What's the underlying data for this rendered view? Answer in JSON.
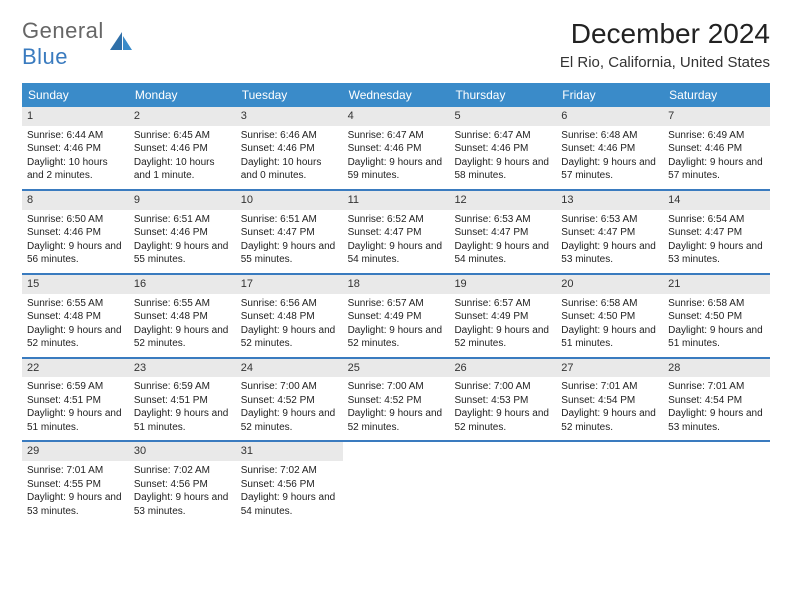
{
  "logo": {
    "part1": "General",
    "part2": "Blue"
  },
  "title": "December 2024",
  "location": "El Rio, California, United States",
  "colors": {
    "header_bg": "#3a8bc9",
    "header_text": "#ffffff",
    "daynum_bg": "#e9e9e9",
    "week_border": "#3a7bbf",
    "logo_blue": "#3a7bbf",
    "text": "#222222",
    "background": "#ffffff"
  },
  "fonts": {
    "title_size_pt": 28,
    "location_size_pt": 15,
    "header_size_pt": 12,
    "body_size_pt": 10,
    "family": "Arial"
  },
  "day_names": [
    "Sunday",
    "Monday",
    "Tuesday",
    "Wednesday",
    "Thursday",
    "Friday",
    "Saturday"
  ],
  "weeks": [
    [
      {
        "n": "1",
        "sr": "Sunrise: 6:44 AM",
        "ss": "Sunset: 4:46 PM",
        "dl": "Daylight: 10 hours and 2 minutes."
      },
      {
        "n": "2",
        "sr": "Sunrise: 6:45 AM",
        "ss": "Sunset: 4:46 PM",
        "dl": "Daylight: 10 hours and 1 minute."
      },
      {
        "n": "3",
        "sr": "Sunrise: 6:46 AM",
        "ss": "Sunset: 4:46 PM",
        "dl": "Daylight: 10 hours and 0 minutes."
      },
      {
        "n": "4",
        "sr": "Sunrise: 6:47 AM",
        "ss": "Sunset: 4:46 PM",
        "dl": "Daylight: 9 hours and 59 minutes."
      },
      {
        "n": "5",
        "sr": "Sunrise: 6:47 AM",
        "ss": "Sunset: 4:46 PM",
        "dl": "Daylight: 9 hours and 58 minutes."
      },
      {
        "n": "6",
        "sr": "Sunrise: 6:48 AM",
        "ss": "Sunset: 4:46 PM",
        "dl": "Daylight: 9 hours and 57 minutes."
      },
      {
        "n": "7",
        "sr": "Sunrise: 6:49 AM",
        "ss": "Sunset: 4:46 PM",
        "dl": "Daylight: 9 hours and 57 minutes."
      }
    ],
    [
      {
        "n": "8",
        "sr": "Sunrise: 6:50 AM",
        "ss": "Sunset: 4:46 PM",
        "dl": "Daylight: 9 hours and 56 minutes."
      },
      {
        "n": "9",
        "sr": "Sunrise: 6:51 AM",
        "ss": "Sunset: 4:46 PM",
        "dl": "Daylight: 9 hours and 55 minutes."
      },
      {
        "n": "10",
        "sr": "Sunrise: 6:51 AM",
        "ss": "Sunset: 4:47 PM",
        "dl": "Daylight: 9 hours and 55 minutes."
      },
      {
        "n": "11",
        "sr": "Sunrise: 6:52 AM",
        "ss": "Sunset: 4:47 PM",
        "dl": "Daylight: 9 hours and 54 minutes."
      },
      {
        "n": "12",
        "sr": "Sunrise: 6:53 AM",
        "ss": "Sunset: 4:47 PM",
        "dl": "Daylight: 9 hours and 54 minutes."
      },
      {
        "n": "13",
        "sr": "Sunrise: 6:53 AM",
        "ss": "Sunset: 4:47 PM",
        "dl": "Daylight: 9 hours and 53 minutes."
      },
      {
        "n": "14",
        "sr": "Sunrise: 6:54 AM",
        "ss": "Sunset: 4:47 PM",
        "dl": "Daylight: 9 hours and 53 minutes."
      }
    ],
    [
      {
        "n": "15",
        "sr": "Sunrise: 6:55 AM",
        "ss": "Sunset: 4:48 PM",
        "dl": "Daylight: 9 hours and 52 minutes."
      },
      {
        "n": "16",
        "sr": "Sunrise: 6:55 AM",
        "ss": "Sunset: 4:48 PM",
        "dl": "Daylight: 9 hours and 52 minutes."
      },
      {
        "n": "17",
        "sr": "Sunrise: 6:56 AM",
        "ss": "Sunset: 4:48 PM",
        "dl": "Daylight: 9 hours and 52 minutes."
      },
      {
        "n": "18",
        "sr": "Sunrise: 6:57 AM",
        "ss": "Sunset: 4:49 PM",
        "dl": "Daylight: 9 hours and 52 minutes."
      },
      {
        "n": "19",
        "sr": "Sunrise: 6:57 AM",
        "ss": "Sunset: 4:49 PM",
        "dl": "Daylight: 9 hours and 52 minutes."
      },
      {
        "n": "20",
        "sr": "Sunrise: 6:58 AM",
        "ss": "Sunset: 4:50 PM",
        "dl": "Daylight: 9 hours and 51 minutes."
      },
      {
        "n": "21",
        "sr": "Sunrise: 6:58 AM",
        "ss": "Sunset: 4:50 PM",
        "dl": "Daylight: 9 hours and 51 minutes."
      }
    ],
    [
      {
        "n": "22",
        "sr": "Sunrise: 6:59 AM",
        "ss": "Sunset: 4:51 PM",
        "dl": "Daylight: 9 hours and 51 minutes."
      },
      {
        "n": "23",
        "sr": "Sunrise: 6:59 AM",
        "ss": "Sunset: 4:51 PM",
        "dl": "Daylight: 9 hours and 51 minutes."
      },
      {
        "n": "24",
        "sr": "Sunrise: 7:00 AM",
        "ss": "Sunset: 4:52 PM",
        "dl": "Daylight: 9 hours and 52 minutes."
      },
      {
        "n": "25",
        "sr": "Sunrise: 7:00 AM",
        "ss": "Sunset: 4:52 PM",
        "dl": "Daylight: 9 hours and 52 minutes."
      },
      {
        "n": "26",
        "sr": "Sunrise: 7:00 AM",
        "ss": "Sunset: 4:53 PM",
        "dl": "Daylight: 9 hours and 52 minutes."
      },
      {
        "n": "27",
        "sr": "Sunrise: 7:01 AM",
        "ss": "Sunset: 4:54 PM",
        "dl": "Daylight: 9 hours and 52 minutes."
      },
      {
        "n": "28",
        "sr": "Sunrise: 7:01 AM",
        "ss": "Sunset: 4:54 PM",
        "dl": "Daylight: 9 hours and 53 minutes."
      }
    ],
    [
      {
        "n": "29",
        "sr": "Sunrise: 7:01 AM",
        "ss": "Sunset: 4:55 PM",
        "dl": "Daylight: 9 hours and 53 minutes."
      },
      {
        "n": "30",
        "sr": "Sunrise: 7:02 AM",
        "ss": "Sunset: 4:56 PM",
        "dl": "Daylight: 9 hours and 53 minutes."
      },
      {
        "n": "31",
        "sr": "Sunrise: 7:02 AM",
        "ss": "Sunset: 4:56 PM",
        "dl": "Daylight: 9 hours and 54 minutes."
      },
      null,
      null,
      null,
      null
    ]
  ]
}
